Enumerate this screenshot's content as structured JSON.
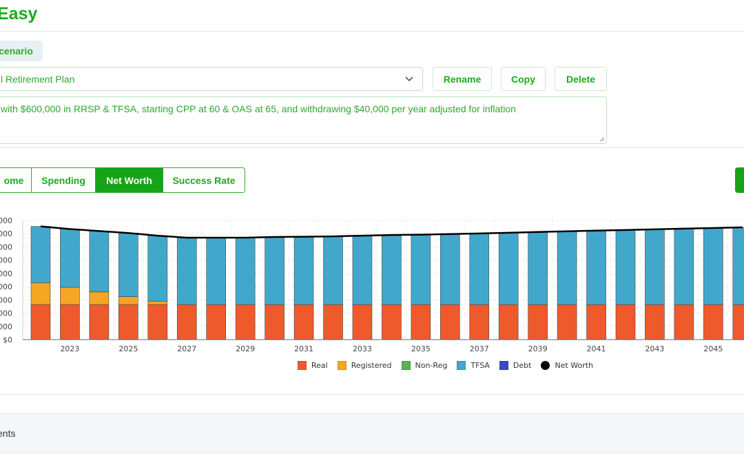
{
  "app": {
    "title": "Easy"
  },
  "scenario": {
    "label": "cenario",
    "selected_plan": "l Retirement Plan",
    "rename_label": "Rename",
    "copy_label": "Copy",
    "delete_label": "Delete",
    "description": "with $600,000 in RRSP & TFSA, starting CPP at 60 & OAS at 65, and withdrawing $40,000 per year adjusted for inflation"
  },
  "tabs": [
    {
      "label": "ome",
      "active": false
    },
    {
      "label": "Spending",
      "active": false
    },
    {
      "label": "Net Worth",
      "active": true
    },
    {
      "label": "Success Rate",
      "active": false
    }
  ],
  "icons": {
    "select": "chevron-down-icon",
    "resize": "resize-grip-icon"
  },
  "colors": {
    "accent": "#1aaa1a",
    "real": "#ee5a2c",
    "registered": "#f5a623",
    "nonreg": "#56b356",
    "tfsa": "#41a8cc",
    "debt": "#3b49c4",
    "networth": "#000000"
  },
  "chart_data": {
    "type": "bar",
    "stacked": true,
    "years": [
      2022,
      2023,
      2024,
      2025,
      2026,
      2027,
      2028,
      2029,
      2030,
      2031,
      2032,
      2033,
      2034,
      2035,
      2036,
      2037,
      2038,
      2039,
      2040,
      2041,
      2042,
      2043,
      2044,
      2045,
      2046
    ],
    "x_tick_labels": [
      "2023",
      "2025",
      "2027",
      "2029",
      "2031",
      "2033",
      "2035",
      "2037",
      "2039",
      "2041",
      "2043",
      "2045"
    ],
    "y_tick_labels": [
      "$0",
      "000",
      "000",
      "000",
      "000",
      "000",
      "000",
      "000",
      "000",
      "000"
    ],
    "ylim": [
      0,
      900
    ],
    "y_unit_note": "",
    "series": [
      {
        "name": "Real",
        "values": [
          265,
          265,
          265,
          265,
          265,
          265,
          265,
          265,
          265,
          265,
          265,
          265,
          265,
          265,
          265,
          265,
          265,
          265,
          265,
          265,
          265,
          265,
          265,
          265,
          265
        ]
      },
      {
        "name": "Registered",
        "values": [
          165,
          130,
          95,
          60,
          25,
          0,
          0,
          0,
          0,
          0,
          0,
          0,
          0,
          0,
          0,
          0,
          0,
          0,
          0,
          0,
          0,
          0,
          0,
          0,
          0
        ]
      },
      {
        "name": "Non-Reg",
        "values": [
          0,
          0,
          0,
          0,
          0,
          0,
          0,
          0,
          0,
          0,
          0,
          0,
          0,
          0,
          0,
          0,
          0,
          0,
          0,
          0,
          0,
          0,
          0,
          0,
          0
        ]
      },
      {
        "name": "TFSA",
        "values": [
          425,
          440,
          460,
          480,
          495,
          505,
          505,
          505,
          510,
          512,
          515,
          520,
          525,
          528,
          532,
          537,
          542,
          548,
          553,
          558,
          563,
          568,
          573,
          578,
          583
        ]
      },
      {
        "name": "Debt",
        "values": [
          0,
          0,
          0,
          0,
          0,
          0,
          0,
          0,
          0,
          0,
          0,
          0,
          0,
          0,
          0,
          0,
          0,
          0,
          0,
          0,
          0,
          0,
          0,
          0,
          0
        ]
      }
    ],
    "net_worth": {
      "name": "Net Worth",
      "values": [
        855,
        835,
        820,
        805,
        785,
        770,
        770,
        770,
        775,
        777,
        780,
        785,
        790,
        793,
        797,
        802,
        807,
        813,
        818,
        823,
        828,
        833,
        838,
        843,
        848
      ]
    },
    "legend": [
      "Real",
      "Registered",
      "Non-Reg",
      "TFSA",
      "Debt",
      "Net Worth"
    ],
    "legend_position": "bottom",
    "grid": true
  },
  "section": {
    "label": "ents"
  }
}
